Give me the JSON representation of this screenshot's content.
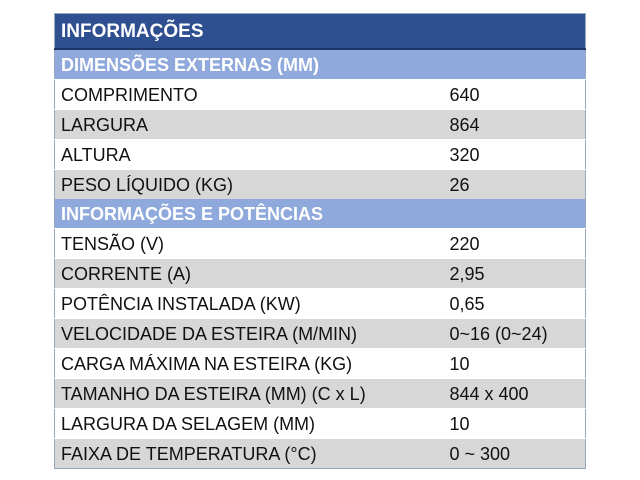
{
  "title": "INFORMAÇÕES",
  "sections": [
    {
      "heading": "DIMENSÕES EXTERNAS (MM)",
      "rows": [
        {
          "label": "COMPRIMENTO",
          "value": "640"
        },
        {
          "label": "LARGURA",
          "value": "864"
        },
        {
          "label": "ALTURA",
          "value": "320"
        },
        {
          "label": "PESO LÍQUIDO (KG)",
          "value": "26"
        }
      ]
    },
    {
      "heading": "INFORMAÇÕES E POTÊNCIAS",
      "rows": [
        {
          "label": "TENSÃO (V)",
          "value": "220"
        },
        {
          "label": "CORRENTE (A)",
          "value": "2,95"
        },
        {
          "label": "POTÊNCIA INSTALADA (KW)",
          "value": "0,65"
        },
        {
          "label": "VELOCIDADE DA ESTEIRA (M/MIN)",
          "value": "0~16 (0~24)"
        },
        {
          "label": "CARGA MÁXIMA NA ESTEIRA (KG)",
          "value": "10"
        },
        {
          "label": "TAMANHO DA ESTEIRA (MM) (C x L)",
          "value": "844 x 400"
        },
        {
          "label": "LARGURA DA SELAGEM (MM)",
          "value": "10"
        },
        {
          "label": "FAIXA DE TEMPERATURA (°C)",
          "value": "0 ~ 300"
        }
      ]
    }
  ],
  "colors": {
    "title_background": "#2e4f90",
    "section_background": "#8fa9dc",
    "odd_row": "#ffffff",
    "even_row": "#d7d7d7"
  }
}
